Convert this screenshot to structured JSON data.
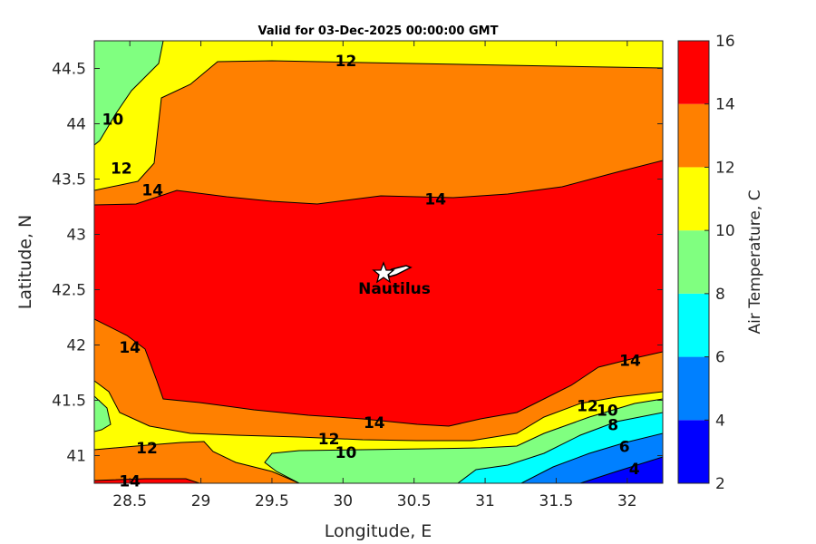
{
  "chart_data": {
    "type": "contour",
    "title": "Valid for 03-Dec-2025 00:00:00 GMT",
    "xlabel": "Longitude, E",
    "ylabel": "Latitude, N",
    "xlim": [
      28.25,
      32.25
    ],
    "ylim": [
      40.75,
      44.75
    ],
    "x_ticks": [
      "28.5",
      "29",
      "29.5",
      "30",
      "30.5",
      "31",
      "31.5",
      "32"
    ],
    "y_ticks": [
      "41",
      "41.5",
      "42",
      "42.5",
      "43",
      "43.5",
      "44",
      "44.5"
    ],
    "colorbar": {
      "label": "Air Temperature, C",
      "ticks": [
        "2",
        "4",
        "6",
        "8",
        "10",
        "12",
        "14",
        "16"
      ],
      "levels": [
        2,
        4,
        6,
        8,
        10,
        12,
        14,
        16
      ],
      "colors": [
        "#0000ff",
        "#0080ff",
        "#00ffff",
        "#80ff80",
        "#ffff00",
        "#ff8000",
        "#ff0000",
        "#800000"
      ]
    },
    "contour_levels": [
      4,
      6,
      8,
      10,
      12,
      14
    ],
    "contour_labels": [
      {
        "text": "10",
        "x": 28.38,
        "y": 44.04
      },
      {
        "text": "12",
        "x": 28.44,
        "y": 43.6
      },
      {
        "text": "14",
        "x": 28.66,
        "y": 43.4
      },
      {
        "text": "12",
        "x": 30.02,
        "y": 44.57
      },
      {
        "text": "14",
        "x": 30.65,
        "y": 43.32
      },
      {
        "text": "14",
        "x": 28.5,
        "y": 41.98
      },
      {
        "text": "14",
        "x": 30.22,
        "y": 41.3
      },
      {
        "text": "12",
        "x": 29.9,
        "y": 41.15
      },
      {
        "text": "10",
        "x": 30.02,
        "y": 41.03
      },
      {
        "text": "12",
        "x": 28.62,
        "y": 41.07
      },
      {
        "text": "14",
        "x": 28.5,
        "y": 40.77
      },
      {
        "text": "12",
        "x": 31.72,
        "y": 41.45
      },
      {
        "text": "10",
        "x": 31.86,
        "y": 41.41
      },
      {
        "text": "8",
        "x": 31.9,
        "y": 41.28
      },
      {
        "text": "14",
        "x": 32.02,
        "y": 41.86
      },
      {
        "text": "6",
        "x": 31.98,
        "y": 41.08
      },
      {
        "text": "4",
        "x": 32.05,
        "y": 40.88
      }
    ],
    "station": {
      "name": "Nautilus",
      "lon": 30.3,
      "lat": 42.65
    }
  }
}
